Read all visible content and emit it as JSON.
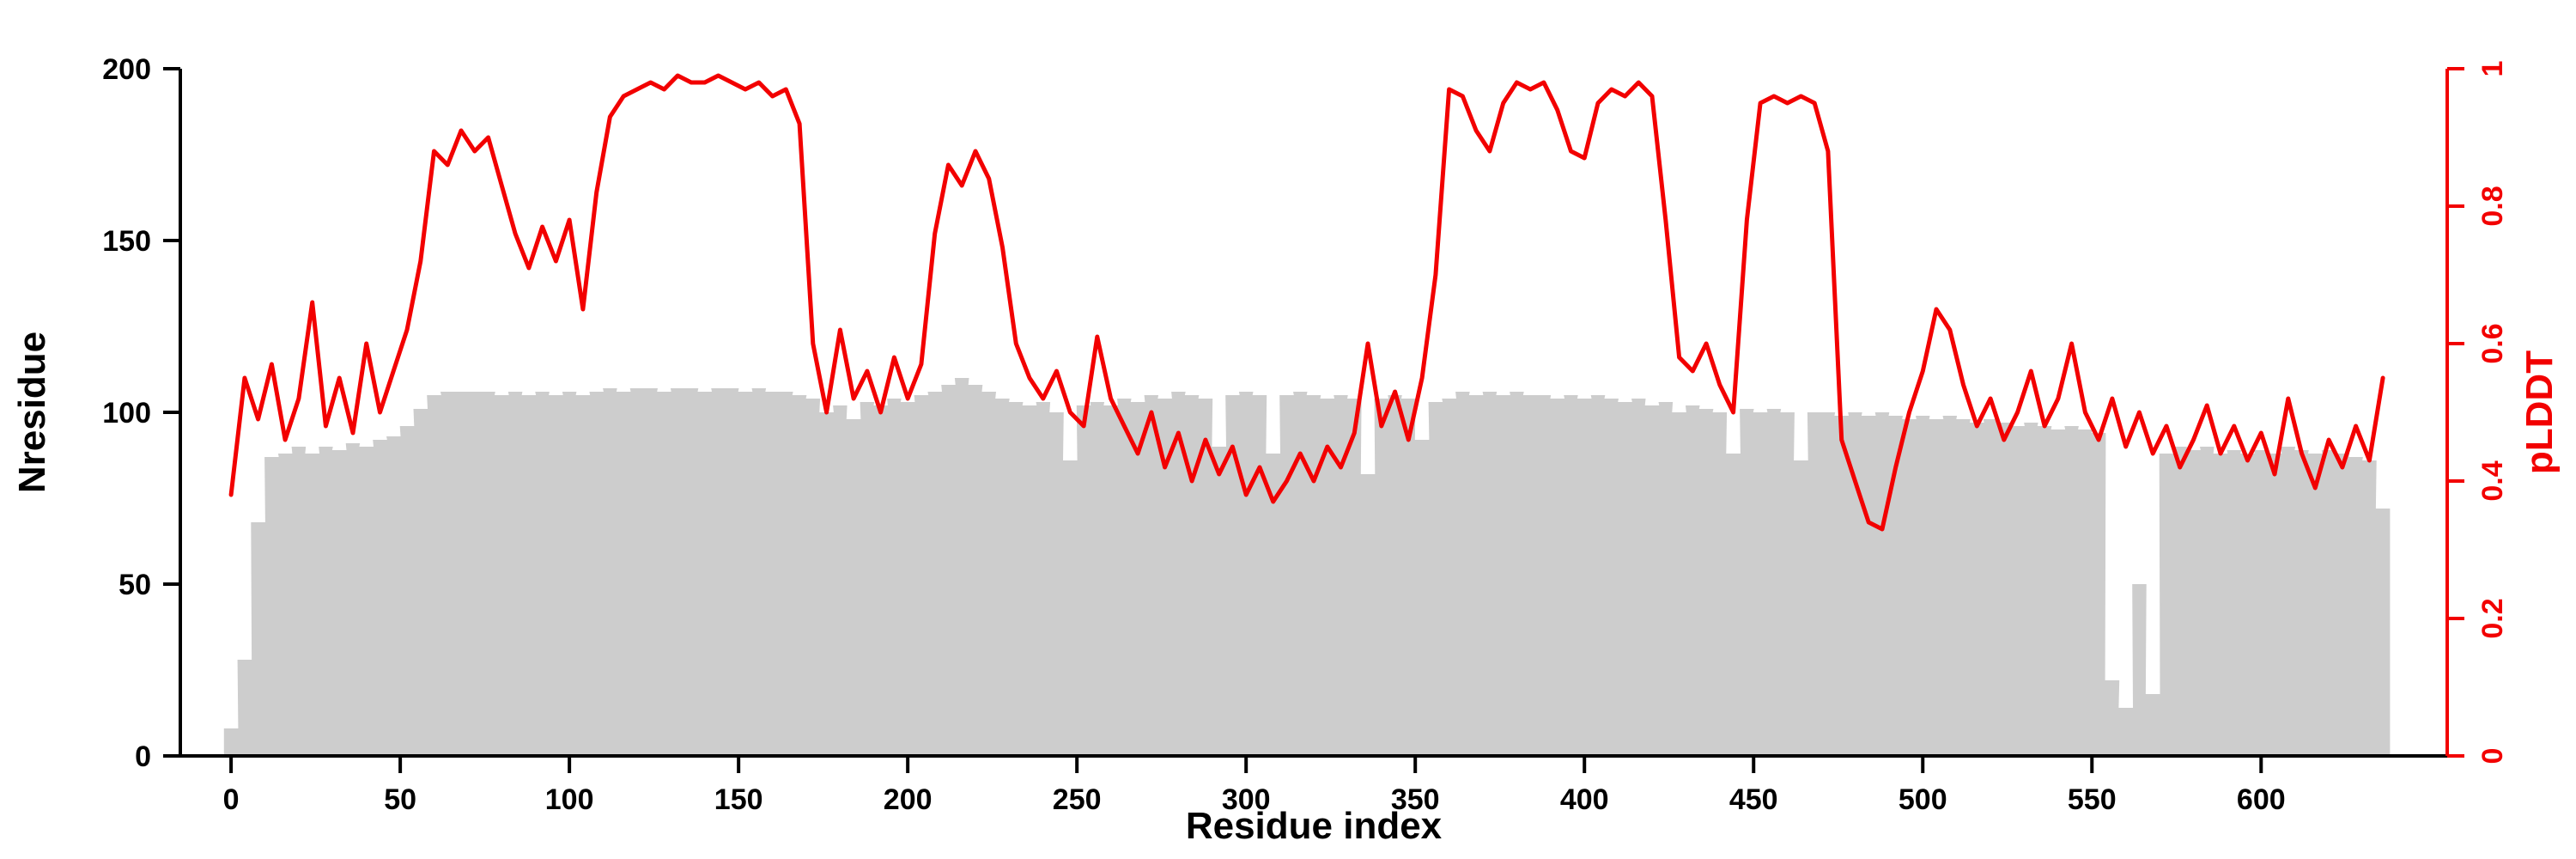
{
  "chart_data": {
    "type": "bar+line",
    "title": "",
    "xlabel": "Residue index",
    "ylabel_left": "Nresidue",
    "ylabel_right": "pLDDT",
    "x_lim": [
      -15,
      655
    ],
    "y_left_lim": [
      0,
      200
    ],
    "y_right_lim": [
      0,
      1
    ],
    "x_ticks": [
      0,
      50,
      100,
      150,
      200,
      250,
      300,
      350,
      400,
      450,
      500,
      550,
      600
    ],
    "y_left_ticks": [
      0,
      50,
      100,
      150,
      200
    ],
    "y_right_ticks": [
      0,
      0.2,
      0.4,
      0.6,
      0.8,
      1
    ],
    "grid": false,
    "legend": "none",
    "axis_color_left": "#000000",
    "axis_color_right": "#f20000",
    "x": [
      0,
      4,
      8,
      12,
      16,
      20,
      24,
      28,
      32,
      36,
      40,
      44,
      48,
      52,
      56,
      60,
      64,
      68,
      72,
      76,
      80,
      84,
      88,
      92,
      96,
      100,
      104,
      108,
      112,
      116,
      120,
      124,
      128,
      132,
      136,
      140,
      144,
      148,
      152,
      156,
      160,
      164,
      168,
      172,
      176,
      180,
      184,
      188,
      192,
      196,
      200,
      204,
      208,
      212,
      216,
      220,
      224,
      228,
      232,
      236,
      240,
      244,
      248,
      252,
      256,
      260,
      264,
      268,
      272,
      276,
      280,
      284,
      288,
      292,
      296,
      300,
      304,
      308,
      312,
      316,
      320,
      324,
      328,
      332,
      336,
      340,
      344,
      348,
      352,
      356,
      360,
      364,
      368,
      372,
      376,
      380,
      384,
      388,
      392,
      396,
      400,
      404,
      408,
      412,
      416,
      420,
      424,
      428,
      432,
      436,
      440,
      444,
      448,
      452,
      456,
      460,
      464,
      468,
      472,
      476,
      480,
      484,
      488,
      492,
      496,
      500,
      504,
      508,
      512,
      516,
      520,
      524,
      528,
      532,
      536,
      540,
      544,
      548,
      552,
      556,
      560,
      564,
      568,
      572,
      576,
      580,
      584,
      588,
      592,
      596,
      600,
      604,
      608,
      612,
      616,
      620,
      624,
      628,
      632,
      636
    ],
    "series": [
      {
        "name": "Nresidue",
        "type": "bar",
        "axis": "left",
        "color": "#cdcdcd",
        "values": [
          8,
          28,
          68,
          87,
          88,
          90,
          88,
          90,
          89,
          91,
          90,
          92,
          93,
          96,
          101,
          105,
          106,
          106,
          106,
          106,
          105,
          106,
          105,
          106,
          105,
          106,
          105,
          106,
          107,
          106,
          107,
          107,
          106,
          107,
          107,
          106,
          107,
          107,
          106,
          107,
          106,
          106,
          105,
          104,
          100,
          102,
          98,
          103,
          102,
          104,
          103,
          105,
          106,
          108,
          110,
          108,
          106,
          104,
          103,
          102,
          103,
          100,
          86,
          102,
          103,
          102,
          104,
          103,
          105,
          104,
          106,
          105,
          104,
          90,
          105,
          106,
          105,
          88,
          105,
          106,
          105,
          104,
          105,
          104,
          82,
          104,
          105,
          104,
          92,
          103,
          104,
          106,
          105,
          106,
          105,
          106,
          105,
          105,
          104,
          105,
          104,
          105,
          104,
          103,
          104,
          102,
          103,
          100,
          102,
          101,
          100,
          88,
          101,
          100,
          101,
          100,
          86,
          100,
          100,
          99,
          100,
          99,
          100,
          99,
          98,
          99,
          98,
          99,
          98,
          97,
          98,
          97,
          96,
          97,
          96,
          95,
          96,
          95,
          94,
          22,
          14,
          50,
          18,
          88,
          90,
          89,
          90,
          88,
          89,
          88,
          89,
          88,
          90,
          89,
          88,
          89,
          88,
          87,
          86,
          72
        ]
      },
      {
        "name": "pLDDT",
        "type": "line",
        "axis": "right",
        "color": "#f20000",
        "values": [
          0.38,
          0.55,
          0.49,
          0.57,
          0.46,
          0.52,
          0.66,
          0.48,
          0.55,
          0.47,
          0.6,
          0.5,
          0.56,
          0.62,
          0.72,
          0.88,
          0.86,
          0.91,
          0.88,
          0.9,
          0.83,
          0.76,
          0.71,
          0.77,
          0.72,
          0.78,
          0.65,
          0.82,
          0.93,
          0.96,
          0.97,
          0.98,
          0.97,
          0.99,
          0.98,
          0.98,
          0.99,
          0.98,
          0.97,
          0.98,
          0.96,
          0.97,
          0.92,
          0.6,
          0.5,
          0.62,
          0.52,
          0.56,
          0.5,
          0.58,
          0.52,
          0.57,
          0.76,
          0.86,
          0.83,
          0.88,
          0.84,
          0.74,
          0.6,
          0.55,
          0.52,
          0.56,
          0.5,
          0.48,
          0.61,
          0.52,
          0.48,
          0.44,
          0.5,
          0.42,
          0.47,
          0.4,
          0.46,
          0.41,
          0.45,
          0.38,
          0.42,
          0.37,
          0.4,
          0.44,
          0.4,
          0.45,
          0.42,
          0.47,
          0.6,
          0.48,
          0.53,
          0.46,
          0.55,
          0.7,
          0.97,
          0.96,
          0.91,
          0.88,
          0.95,
          0.98,
          0.97,
          0.98,
          0.94,
          0.88,
          0.87,
          0.95,
          0.97,
          0.96,
          0.98,
          0.96,
          0.78,
          0.58,
          0.56,
          0.6,
          0.54,
          0.5,
          0.78,
          0.95,
          0.96,
          0.95,
          0.96,
          0.95,
          0.88,
          0.46,
          0.4,
          0.34,
          0.33,
          0.42,
          0.5,
          0.56,
          0.65,
          0.62,
          0.54,
          0.48,
          0.52,
          0.46,
          0.5,
          0.56,
          0.48,
          0.52,
          0.6,
          0.5,
          0.46,
          0.52,
          0.45,
          0.5,
          0.44,
          0.48,
          0.42,
          0.46,
          0.51,
          0.44,
          0.48,
          0.43,
          0.47,
          0.41,
          0.52,
          0.44,
          0.39,
          0.46,
          0.42,
          0.48,
          0.43,
          0.55
        ]
      }
    ]
  }
}
